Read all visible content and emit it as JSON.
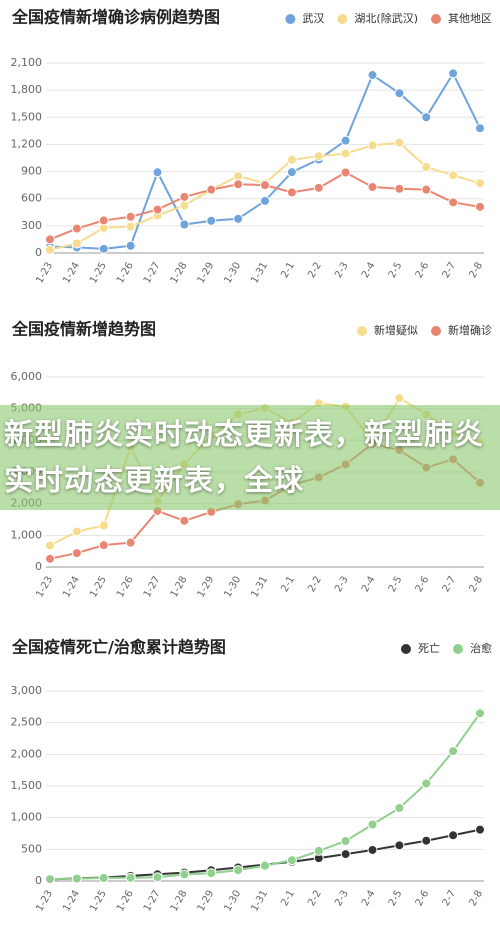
{
  "chart_data": [
    {
      "type": "line",
      "title": "全国疫情新增确诊病例趋势图",
      "categories": [
        "1-23",
        "1-24",
        "1-25",
        "1-26",
        "1-27",
        "1-28",
        "1-29",
        "1-30",
        "1-31",
        "2-1",
        "2-2",
        "2-3",
        "2-4",
        "2-5",
        "2-6",
        "2-7",
        "2-8"
      ],
      "series": [
        {
          "name": "武汉",
          "color": "#6fa3dc",
          "values": [
            70,
            62,
            46,
            80,
            892,
            315,
            356,
            378,
            576,
            894,
            1033,
            1242,
            1967,
            1766,
            1501,
            1985,
            1379
          ]
        },
        {
          "name": "湖北(除武汉)",
          "color": "#f6dc8c",
          "values": [
            35,
            105,
            277,
            291,
            415,
            525,
            700,
            850,
            770,
            1030,
            1070,
            1100,
            1190,
            1220,
            950,
            860,
            770
          ]
        },
        {
          "name": "其他地区",
          "color": "#e98672",
          "values": [
            150,
            270,
            360,
            400,
            480,
            620,
            700,
            760,
            750,
            670,
            720,
            890,
            730,
            710,
            700,
            560,
            510
          ]
        }
      ],
      "ylim": [
        0,
        2100
      ],
      "yticks": [
        0,
        300,
        600,
        900,
        {
          "value": 1200,
          "label": "1,200"
        },
        {
          "value": 1500,
          "label": "1,500"
        },
        {
          "value": 1800,
          "label": "1,800"
        },
        {
          "value": 2100,
          "label": "2,100"
        }
      ],
      "grid": true,
      "legend": "top-right"
    },
    {
      "type": "line",
      "title": "全国疫情新增趋势图",
      "categories": [
        "1-23",
        "1-24",
        "1-25",
        "1-26",
        "1-27",
        "1-28",
        "1-29",
        "1-30",
        "1-31",
        "2-1",
        "2-2",
        "2-3",
        "2-4",
        "2-5",
        "2-6",
        "2-7",
        "2-8"
      ],
      "series": [
        {
          "name": "新增疑似",
          "color": "#f6dc8c",
          "values": [
            680,
            1120,
            1310,
            3800,
            2080,
            3250,
            4150,
            4810,
            5020,
            4560,
            5170,
            5070,
            3970,
            5330,
            4830,
            4210,
            3920
          ]
        },
        {
          "name": "新增确诊",
          "color": "#e98672",
          "values": [
            260,
            440,
            690,
            770,
            1770,
            1460,
            1740,
            1980,
            2100,
            2590,
            2830,
            3240,
            3890,
            3690,
            3140,
            3400,
            2660
          ]
        }
      ],
      "ylim": [
        0,
        6000
      ],
      "yticks": [
        0,
        {
          "value": 1000,
          "label": "1,000"
        },
        {
          "value": 2000,
          "label": "2,000"
        },
        {
          "value": 3000,
          "label": "3,000"
        },
        {
          "value": 4000,
          "label": "4,000"
        },
        {
          "value": 5000,
          "label": "5,000"
        },
        {
          "value": 6000,
          "label": "6,000"
        }
      ],
      "grid": true,
      "legend": "top-right"
    },
    {
      "type": "line",
      "title": "全国疫情死亡/治愈累计趋势图",
      "categories": [
        "1-23",
        "1-24",
        "1-25",
        "1-26",
        "1-27",
        "1-28",
        "1-29",
        "1-30",
        "1-31",
        "2-1",
        "2-2",
        "2-3",
        "2-4",
        "2-5",
        "2-6",
        "2-7",
        "2-8"
      ],
      "series": [
        {
          "name": "死亡",
          "color": "#333333",
          "values": [
            25,
            41,
            56,
            80,
            106,
            132,
            170,
            213,
            259,
            304,
            361,
            425,
            490,
            563,
            636,
            722,
            811
          ]
        },
        {
          "name": "治愈",
          "color": "#8fd08c",
          "values": [
            30,
            38,
            49,
            51,
            60,
            103,
            124,
            171,
            243,
            328,
            475,
            632,
            892,
            1153,
            1540,
            2050,
            2649
          ]
        }
      ],
      "ylim": [
        0,
        3000
      ],
      "yticks": [
        0,
        500,
        {
          "value": 1000,
          "label": "1,000"
        },
        {
          "value": 1500,
          "label": "1,500"
        },
        {
          "value": 2000,
          "label": "2,000"
        },
        {
          "value": 2500,
          "label": "2,500"
        },
        {
          "value": 3000,
          "label": "3,000"
        }
      ],
      "grid": true,
      "legend": "top-right"
    }
  ],
  "banner": "新型肺炎实时动态更新表，新型肺炎实时动态更新表，全球"
}
